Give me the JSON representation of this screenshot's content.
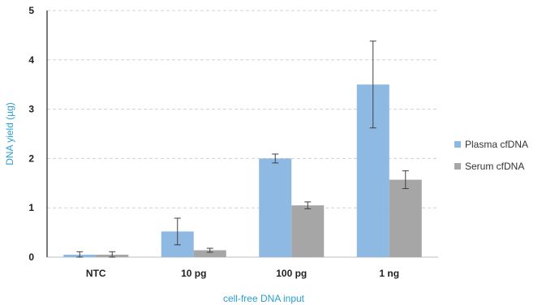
{
  "chart_data": {
    "type": "bar",
    "title": "",
    "xlabel": "cell-free DNA input",
    "ylabel": "DNA yield (µg)",
    "categories": [
      "NTC",
      "10 pg",
      "100 pg",
      "1 ng"
    ],
    "ylim": [
      0,
      5
    ],
    "yticks": [
      "0",
      "1",
      "2",
      "3",
      "4",
      "5"
    ],
    "grid": true,
    "legend_position": "right",
    "series": [
      {
        "name": "Plasma cfDNA",
        "color": "#8db9e3",
        "values": [
          0.05,
          0.52,
          2.0,
          3.5
        ],
        "errors": [
          0.06,
          0.27,
          0.09,
          0.88
        ]
      },
      {
        "name": "Serum cfDNA",
        "color": "#a6a6a6",
        "values": [
          0.05,
          0.14,
          1.05,
          1.57
        ],
        "errors": [
          0.06,
          0.04,
          0.07,
          0.18
        ]
      }
    ]
  }
}
